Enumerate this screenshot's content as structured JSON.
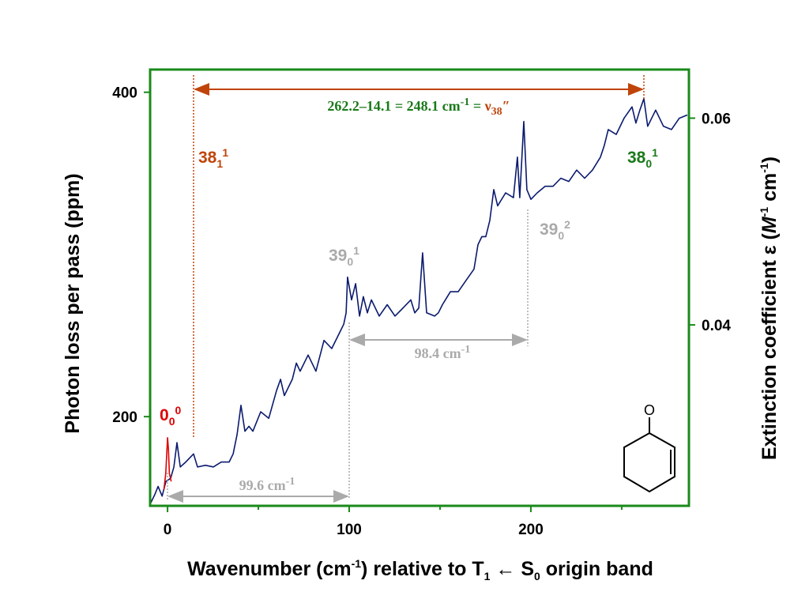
{
  "chart_data": {
    "type": "line",
    "x_label": [
      "Wavenumber (cm",
      "-1",
      ") relative to T",
      "1",
      " ← S",
      "0",
      " origin band"
    ],
    "y_label": "Photon loss per pass (ppm)",
    "y2_label": [
      "Extinction coefficient ε (",
      "M",
      "-1",
      " cm",
      "-1",
      ")"
    ],
    "xlim": [
      -9.6,
      287
    ],
    "xticks": [
      0,
      100,
      200
    ],
    "xminor": [
      50,
      150,
      250
    ],
    "ylim": [
      145,
      414
    ],
    "yticks": [
      200,
      400
    ],
    "y2lim": [
      0.0225,
      0.0647
    ],
    "y2ticks": [
      0.04,
      0.06
    ],
    "y2tick_color": "#e00000",
    "frame_color": "#1a8a1a",
    "series": [
      {
        "color": "#0a1a6e",
        "x": [
          -9.6,
          -7.0,
          -5.2,
          -3.0,
          -0.9,
          1.7,
          3.5,
          5.2,
          7.0,
          10.0,
          14.3,
          16.5,
          20.9,
          25.2,
          29.6,
          33.9,
          36.1,
          38.3,
          40.4,
          42.6,
          44.8,
          47.0,
          51.3,
          55.7,
          60.0,
          62.2,
          64.3,
          68.7,
          70.9,
          73.0,
          77.4,
          81.7,
          86.1,
          90.4,
          94.8,
          97.0,
          98.3,
          99.1,
          101.3,
          103.5,
          105.7,
          107.8,
          110.0,
          112.2,
          116.5,
          120.9,
          125.2,
          129.6,
          133.9,
          136.1,
          138.3,
          140.4,
          142.6,
          147.0,
          149.1,
          151.3,
          155.7,
          160.0,
          164.3,
          168.7,
          170.9,
          173.0,
          175.2,
          177.4,
          179.6,
          181.7,
          186.1,
          190.4,
          192.6,
          193.9,
          196.1,
          197.8,
          200.0,
          203.5,
          207.8,
          212.2,
          216.5,
          220.9,
          225.2,
          229.6,
          233.9,
          238.3,
          240.4,
          242.6,
          247.0,
          251.3,
          255.7,
          257.8,
          260.0,
          262.2,
          264.3,
          268.7,
          273.0,
          277.4,
          281.7,
          286.1
        ],
        "values": [
          146,
          152,
          157,
          151,
          160,
          162,
          169,
          184,
          169,
          172,
          177,
          169,
          170,
          169,
          172,
          172,
          177,
          189,
          207,
          191,
          194,
          191,
          203,
          199,
          216,
          223,
          213,
          223,
          233,
          228,
          238,
          228,
          247,
          242,
          252,
          257,
          264,
          286,
          272,
          282,
          262,
          274,
          264,
          272,
          262,
          269,
          262,
          267,
          272,
          264,
          267,
          301,
          264,
          262,
          264,
          269,
          277,
          277,
          284,
          291,
          306,
          311,
          311,
          321,
          340,
          330,
          338,
          335,
          360,
          335,
          382,
          340,
          334,
          338,
          342,
          342,
          347,
          345,
          352,
          347,
          352,
          360,
          367,
          377,
          374,
          384,
          391,
          381,
          389,
          396,
          379,
          389,
          379,
          377,
          384,
          386
        ]
      },
      {
        "color": "#e00000",
        "x": [
          -2,
          -1,
          0,
          0.5,
          1,
          2
        ],
        "values": [
          155,
          165,
          187,
          180,
          165,
          160
        ]
      }
    ],
    "annotations": {
      "origin": [
        "0",
        "0",
        "0"
      ],
      "b38_1_1": [
        "38",
        "1",
        "1"
      ],
      "b38_0_1": [
        "38",
        "0",
        "1"
      ],
      "b39_0_1": [
        "39",
        "0",
        "1"
      ],
      "b39_0_2": [
        "39",
        "0",
        "2"
      ],
      "span_nu38": [
        "262.2–14.1 = 248.1 cm",
        "-1",
        " = ",
        "ν",
        "38",
        "″"
      ],
      "span_98": [
        "98.4 cm",
        "-1"
      ],
      "span_99": [
        "99.6 cm",
        "-1"
      ],
      "oxygen": "O"
    }
  }
}
